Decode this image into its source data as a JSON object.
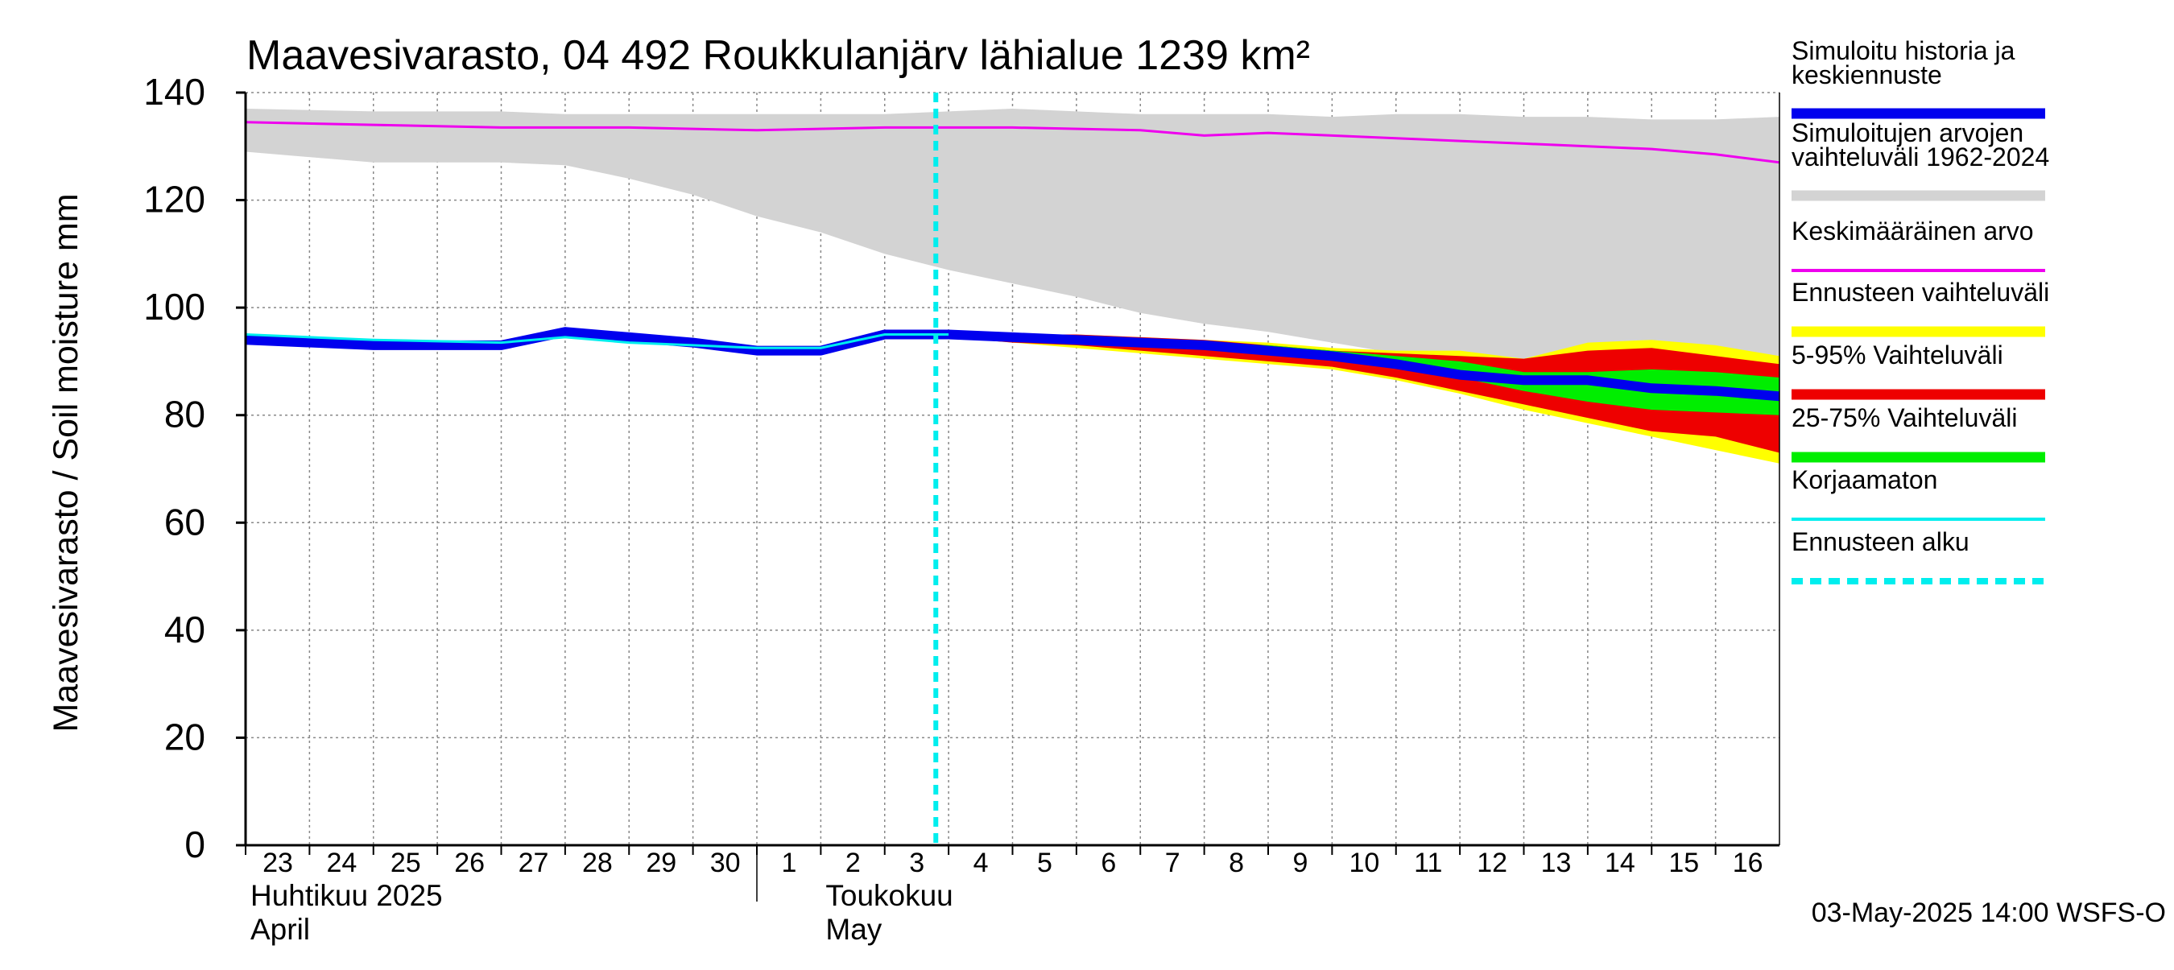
{
  "chart_data": {
    "type": "line",
    "title": "Maavesivarasto, 04 492 Roukkulanjärv lähialue 1239 km²",
    "ylabel": "Maavesivarasto / Soil moisture   mm",
    "ylim": [
      0,
      140
    ],
    "y_ticks": [
      "0",
      "20",
      "40",
      "60",
      "80",
      "100",
      "120",
      "140"
    ],
    "x_ticks": [
      "23",
      "24",
      "25",
      "26",
      "27",
      "28",
      "29",
      "30",
      "1",
      "2",
      "3",
      "4",
      "5",
      "6",
      "7",
      "8",
      "9",
      "10",
      "11",
      "12",
      "13",
      "14",
      "15",
      "16"
    ],
    "month_labels": [
      {
        "fi": "Huhtikuu  2025",
        "en": "April"
      },
      {
        "fi": "Toukokuu",
        "en": "May"
      }
    ],
    "footer": "03-May-2025 14:00 WSFS-O",
    "grid": true,
    "legend_position": "right",
    "forecast_start_day": 10.8,
    "legend": [
      {
        "label": "Simuloitu historia ja keskiennuste",
        "color": "#0000ee"
      },
      {
        "label": "Simuloitujen arvojen vaihteluväli 1962-2024",
        "color": "#d3d3d3"
      },
      {
        "label": "Keskimääräinen arvo",
        "color": "#ee00ee"
      },
      {
        "label": "Ennusteen vaihteluväli",
        "color": "#ffff00"
      },
      {
        "label": "5-95% Vaihteluväli",
        "color": "#ee0000"
      },
      {
        "label": "25-75% Vaihteluväli",
        "color": "#00ee00"
      },
      {
        "label": "Korjaamaton",
        "color": "#00eeee"
      },
      {
        "label": "Ennusteen alku",
        "color": "#00eeee"
      }
    ],
    "series": {
      "hist_range": {
        "x": [
          0,
          2,
          4,
          5,
          6,
          7,
          8,
          9,
          10,
          11,
          12,
          13,
          14,
          15,
          16,
          17,
          18,
          19,
          20,
          21,
          22,
          23,
          24
        ],
        "upper": [
          137,
          136.5,
          136.5,
          136,
          136,
          136,
          136,
          136,
          136,
          136.5,
          137,
          136.5,
          136,
          136,
          136,
          135.5,
          136,
          136,
          135.5,
          135.5,
          135,
          135,
          135.5
        ],
        "lower": [
          129,
          127,
          127,
          126.5,
          124,
          121,
          117,
          114,
          110,
          107,
          104.5,
          102,
          99,
          97,
          95.5,
          93.5,
          91.5,
          89.5,
          87,
          85,
          83,
          81,
          78
        ]
      },
      "mean": {
        "x": [
          0,
          2,
          4,
          6,
          8,
          10,
          12,
          14,
          15,
          16,
          17,
          18,
          19,
          20,
          21,
          22,
          23,
          24
        ],
        "values": [
          134.5,
          134,
          133.5,
          133.5,
          133,
          133.5,
          133.5,
          133,
          132,
          132.5,
          132,
          131.5,
          131,
          130.5,
          130,
          129.5,
          128.5,
          127
        ]
      },
      "forecast_range": {
        "x": [
          11,
          12,
          13,
          14,
          15,
          16,
          17,
          18,
          19,
          20,
          21,
          22,
          23,
          24
        ],
        "upper": [
          95,
          95,
          95,
          94.5,
          94,
          93.5,
          92.5,
          92,
          92,
          90.5,
          93.5,
          94,
          93,
          91
        ],
        "lower": [
          94.5,
          93.5,
          92.5,
          91.5,
          90.5,
          89.5,
          88.5,
          86.5,
          84,
          81,
          78.5,
          76,
          73.5,
          71
        ]
      },
      "p5_95": {
        "x": [
          11,
          12,
          13,
          14,
          15,
          16,
          17,
          18,
          19,
          20,
          21,
          22,
          23,
          24
        ],
        "upper": [
          95,
          95,
          95,
          94.5,
          94,
          93,
          92,
          91.5,
          91,
          90.5,
          92,
          92.5,
          91,
          89.5
        ],
        "lower": [
          94.5,
          93.5,
          93,
          92,
          91,
          90,
          89,
          87,
          84.5,
          82,
          79.5,
          77,
          76,
          73
        ]
      },
      "p25_75": {
        "x": [
          11,
          12,
          13,
          14,
          15,
          16,
          17,
          18,
          19,
          20,
          21,
          22,
          23,
          24
        ],
        "upper": [
          95,
          95,
          94.5,
          94,
          93.5,
          93,
          92,
          91,
          90,
          88,
          88,
          88.5,
          88,
          87
        ],
        "lower": [
          94.5,
          94,
          93.5,
          93,
          92.5,
          91.5,
          90.5,
          89,
          87,
          84.5,
          82.5,
          81,
          80.5,
          80
        ]
      },
      "main": {
        "x": [
          0,
          2,
          4,
          5,
          6,
          7,
          8,
          9,
          10,
          11,
          12,
          13,
          14,
          15,
          16,
          17,
          18,
          19,
          20,
          21,
          22,
          23,
          24
        ],
        "values": [
          94,
          93,
          93,
          95.5,
          94.5,
          93.5,
          92,
          92,
          95,
          95,
          94.5,
          94,
          93.5,
          93,
          92,
          91,
          89.5,
          87.5,
          86.5,
          86.5,
          85,
          84.5,
          83.5
        ]
      },
      "uncorrected": {
        "x": [
          0,
          2,
          4,
          5,
          6,
          7,
          8,
          9,
          10,
          11
        ],
        "values": [
          95,
          94,
          93.5,
          94.5,
          93.5,
          93,
          92.5,
          92.5,
          95,
          95
        ]
      }
    }
  }
}
